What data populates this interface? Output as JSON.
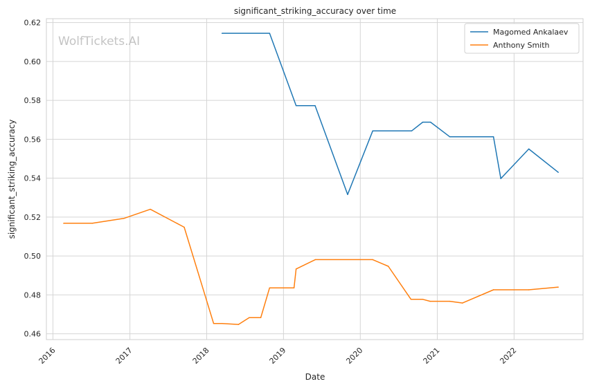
{
  "chart_data": {
    "type": "line",
    "title": "significant_striking_accuracy over time",
    "xlabel": "Date",
    "ylabel": "significant_striking_accuracy",
    "watermark": "WolfTickets.AI",
    "x_ticks": [
      "2016",
      "2017",
      "2018",
      "2019",
      "2020",
      "2021",
      "2022"
    ],
    "y_ticks": [
      "0.46",
      "0.48",
      "0.50",
      "0.52",
      "0.54",
      "0.56",
      "0.58",
      "0.60",
      "0.62"
    ],
    "xlim": [
      "2015-12-01",
      "2022-11-25"
    ],
    "ylim": [
      0.457,
      0.622
    ],
    "grid": true,
    "legend_position": "top-right",
    "colors": {
      "series_1": "#1f77b4",
      "series_2": "#ff7f0e",
      "grid": "#d5d5d5",
      "axes": "#cfcfcf"
    },
    "series": [
      {
        "name": "Magomed Ankalaev",
        "color": "#1f77b4",
        "points": [
          [
            "2018-03-15",
            0.6145
          ],
          [
            "2018-10-27",
            0.6145
          ],
          [
            "2019-03-02",
            0.5773
          ],
          [
            "2019-05-31",
            0.5773
          ],
          [
            "2019-11-02",
            0.5316
          ],
          [
            "2020-02-29",
            0.5643
          ],
          [
            "2020-09-01",
            0.5643
          ],
          [
            "2020-10-24",
            0.5688
          ],
          [
            "2020-11-30",
            0.5688
          ],
          [
            "2021-03-01",
            0.5613
          ],
          [
            "2021-09-25",
            0.5613
          ],
          [
            "2021-10-30",
            0.5398
          ],
          [
            "2022-03-12",
            0.555
          ],
          [
            "2022-07-30",
            0.543
          ]
        ]
      },
      {
        "name": "Anthony Smith",
        "color": "#ff7f0e",
        "points": [
          [
            "2016-02-21",
            0.5168
          ],
          [
            "2016-07-07",
            0.5168
          ],
          [
            "2016-12-03",
            0.5193
          ],
          [
            "2017-04-08",
            0.524
          ],
          [
            "2017-09-16",
            0.5148
          ],
          [
            "2018-02-03",
            0.4653
          ],
          [
            "2018-03-15",
            0.4653
          ],
          [
            "2018-06-01",
            0.4648
          ],
          [
            "2018-07-22",
            0.4683
          ],
          [
            "2018-09-15",
            0.4683
          ],
          [
            "2018-10-27",
            0.4836
          ],
          [
            "2019-02-20",
            0.4836
          ],
          [
            "2019-03-02",
            0.4933
          ],
          [
            "2019-06-01",
            0.4981
          ],
          [
            "2020-02-29",
            0.4981
          ],
          [
            "2020-05-13",
            0.4947
          ],
          [
            "2020-08-29",
            0.4777
          ],
          [
            "2020-10-24",
            0.4777
          ],
          [
            "2020-11-28",
            0.4767
          ],
          [
            "2021-03-01",
            0.4767
          ],
          [
            "2021-05-01",
            0.4758
          ],
          [
            "2021-09-25",
            0.4826
          ],
          [
            "2022-03-12",
            0.4826
          ],
          [
            "2022-07-30",
            0.484
          ]
        ]
      }
    ]
  }
}
